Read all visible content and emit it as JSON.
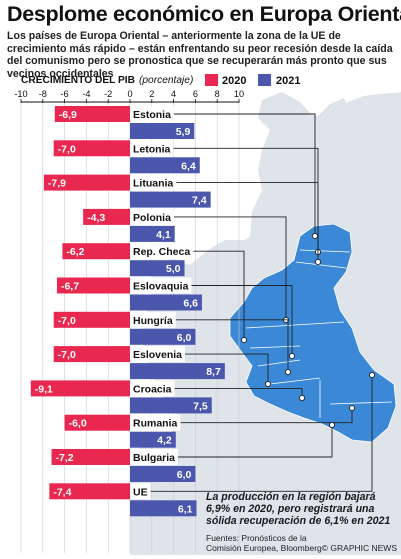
{
  "title": "Desplome económico en Europa Oriental",
  "subtitle": "Los países de Europa Oriental – anteriormente la zona de la UE de crecimiento más rápido – están enfrentando su peor recesión desde la caída del comunismo pero se pronostica que se recuperarán más pronto que sus vecinos occidentales",
  "note": "La producción en la región bajará 6,9% en 2020, pero registrará una sólida recuperación de 6,1% en 2021",
  "sources": "Fuentes: Pronósticos de la Comisión Europea, Bloomberg",
  "credit": "© GRAPHIC NEWS",
  "colors": {
    "2020": "#e8284f",
    "2021": "#4b56ad",
    "map_land": "#dfe3ea",
    "map_highlight": "#3b89d6",
    "map_sea": "#ffffff"
  },
  "chart_data": {
    "type": "bar",
    "orientation": "horizontal",
    "xlabel": "CRECIMIENTO DEL PIB",
    "unit_label": "(porcentaje)",
    "xlim": [
      -10,
      10
    ],
    "xticks": [
      "-10",
      "-8",
      "-6",
      "-4",
      "-2",
      "0",
      "2",
      "4",
      "6",
      "8",
      "10"
    ],
    "categories": [
      "Estonia",
      "Letonia",
      "Lituania",
      "Polonia",
      "Rep. Checa",
      "Eslovaquia",
      "Hungría",
      "Eslovenia",
      "Croacia",
      "Rumania",
      "Bulgaria",
      "UE"
    ],
    "series": [
      {
        "name": "2020",
        "values": [
          -6.9,
          -7.0,
          -7.9,
          -4.3,
          -6.2,
          -6.7,
          -7.0,
          -7.0,
          -9.1,
          -6.0,
          -7.2,
          -7.4
        ],
        "labels": [
          "-6,9",
          "-7,0",
          "-7,9",
          "-4,3",
          "-6,2",
          "-6,7",
          "-7,0",
          "-7,0",
          "-9,1",
          "-6,0",
          "-7,2",
          "-7,4"
        ]
      },
      {
        "name": "2021",
        "values": [
          5.9,
          6.4,
          7.4,
          4.1,
          5.0,
          6.6,
          6.0,
          8.7,
          7.5,
          4.2,
          6.0,
          6.1
        ],
        "labels": [
          "5,9",
          "6,4",
          "7,4",
          "4,1",
          "5,0",
          "6,6",
          "6,0",
          "8,7",
          "7,5",
          "4,2",
          "6,0",
          "6,1"
        ]
      }
    ],
    "legend_position": "top-right",
    "grid": true
  }
}
